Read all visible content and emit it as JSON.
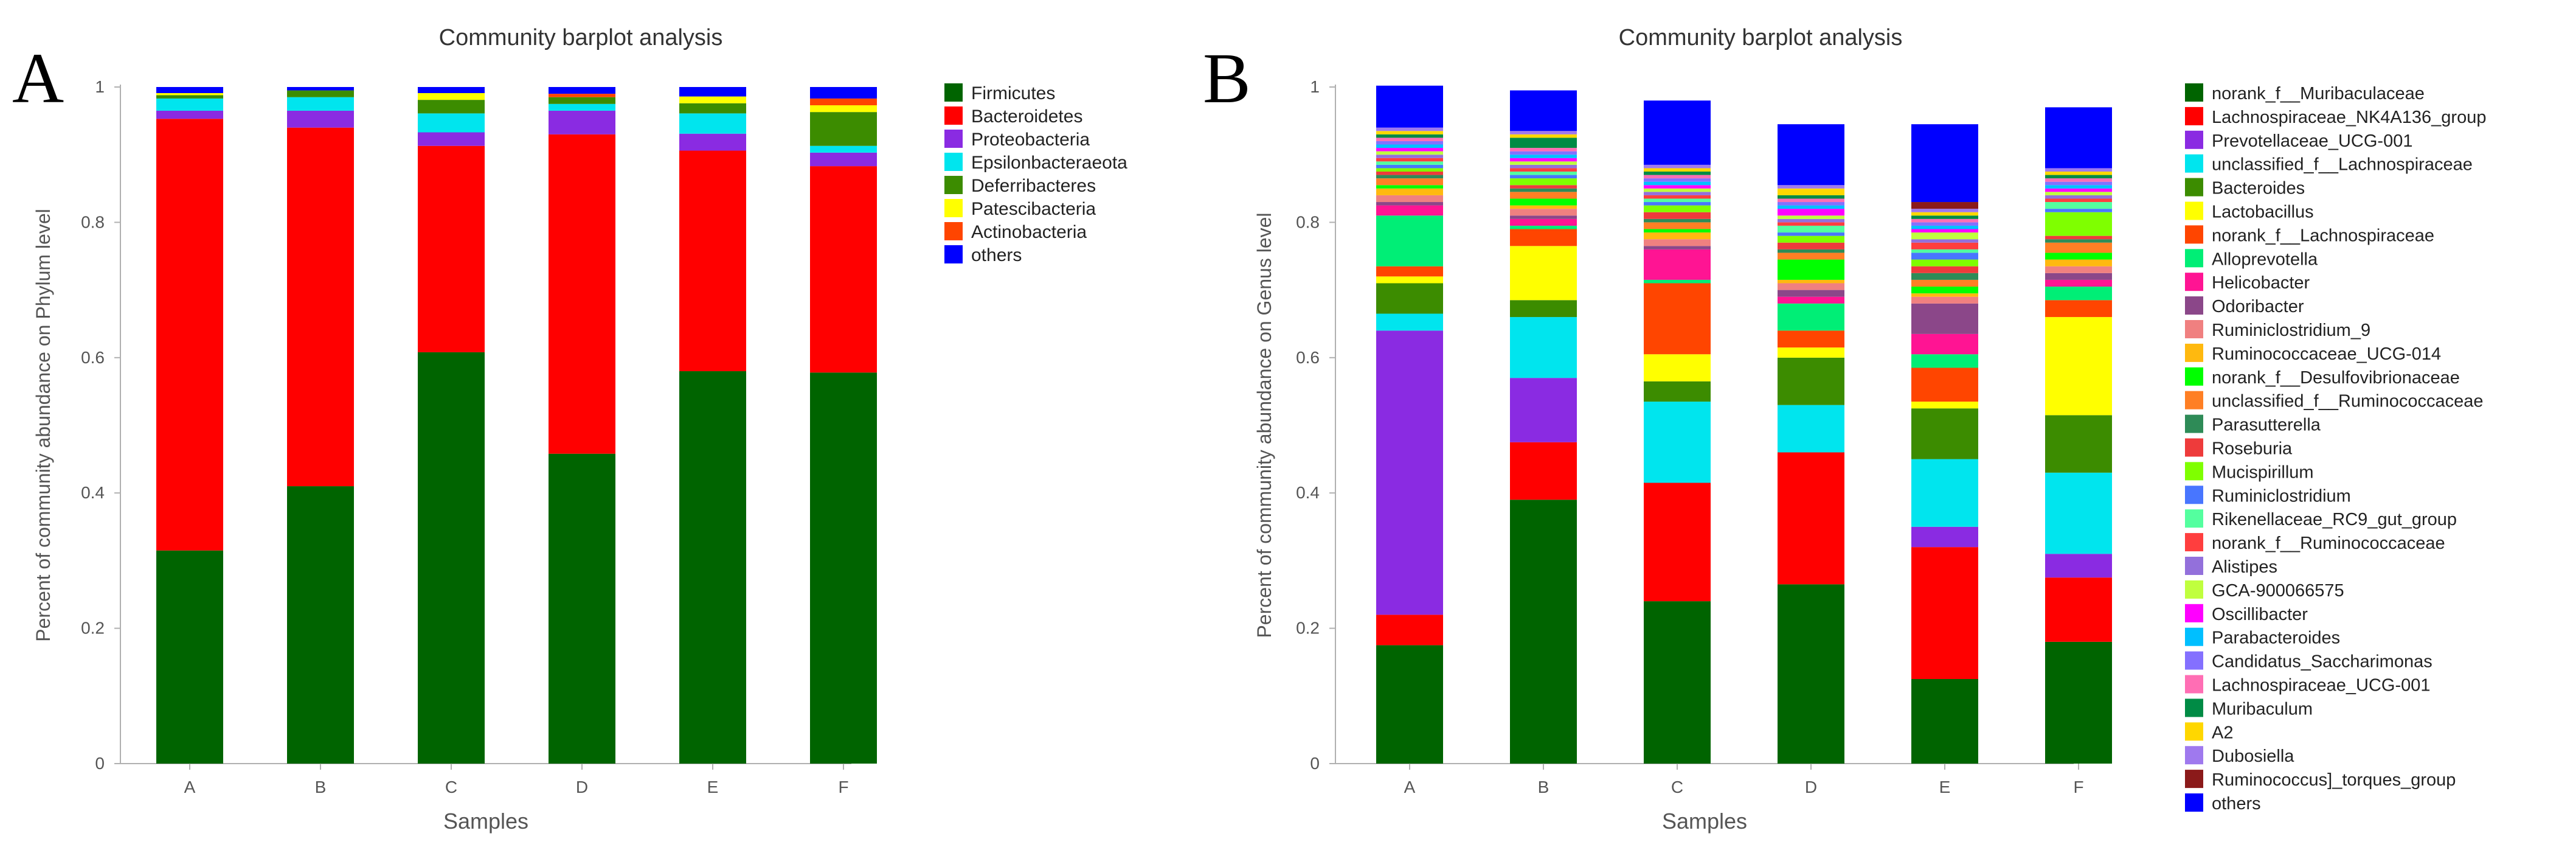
{
  "panels": [
    {
      "letter": "A"
    },
    {
      "letter": "B"
    }
  ],
  "chart_data": [
    {
      "type": "bar",
      "stacked": true,
      "title": "Community barplot analysis",
      "xlabel": "Samples",
      "ylabel": "Percent of community abundance on Phylum level",
      "ylim": [
        0,
        1
      ],
      "yticks": [
        "0",
        "0.2",
        "0.4",
        "0.6",
        "0.8",
        "1"
      ],
      "categories": [
        "A",
        "B",
        "C",
        "D",
        "E",
        "F"
      ],
      "legend_position": "right",
      "series": [
        {
          "name": "Firmicutes",
          "color": "#006400",
          "values": [
            0.315,
            0.41,
            0.608,
            0.458,
            0.58,
            0.578
          ]
        },
        {
          "name": "Bacteroidetes",
          "color": "#ff0000",
          "values": [
            0.638,
            0.53,
            0.305,
            0.472,
            0.326,
            0.305
          ]
        },
        {
          "name": "Proteobacteria",
          "color": "#8a2be2",
          "values": [
            0.012,
            0.025,
            0.02,
            0.035,
            0.025,
            0.02
          ]
        },
        {
          "name": "Epsilonbacteraeota",
          "color": "#00e5ee",
          "values": [
            0.018,
            0.02,
            0.028,
            0.01,
            0.03,
            0.01
          ]
        },
        {
          "name": "Deferribacteres",
          "color": "#3c8c00",
          "values": [
            0.005,
            0.01,
            0.02,
            0.01,
            0.015,
            0.05
          ]
        },
        {
          "name": "Patescibacteria",
          "color": "#ffff00",
          "values": [
            0.003,
            0.0,
            0.01,
            0.0,
            0.01,
            0.01
          ]
        },
        {
          "name": "Actinobacteria",
          "color": "#ff4500",
          "values": [
            0.0,
            0.0,
            0.0,
            0.005,
            0.0,
            0.01
          ]
        },
        {
          "name": "others",
          "color": "#0000ff",
          "values": [
            0.009,
            0.005,
            0.009,
            0.01,
            0.014,
            0.017
          ]
        }
      ]
    },
    {
      "type": "bar",
      "stacked": true,
      "title": "Community barplot analysis",
      "xlabel": "Samples",
      "ylabel": "Percent of community abundance on Genus level",
      "ylim": [
        0,
        1
      ],
      "yticks": [
        "0",
        "0.2",
        "0.4",
        "0.6",
        "0.8",
        "1"
      ],
      "categories": [
        "A",
        "B",
        "C",
        "D",
        "E",
        "F"
      ],
      "legend_position": "right",
      "series": [
        {
          "name": "norank_f__Muribaculaceae",
          "color": "#006400",
          "values": [
            0.175,
            0.39,
            0.24,
            0.265,
            0.125,
            0.18
          ]
        },
        {
          "name": "Lachnospiraceae_NK4A136_group",
          "color": "#ff0000",
          "values": [
            0.045,
            0.085,
            0.175,
            0.195,
            0.195,
            0.095
          ]
        },
        {
          "name": "Prevotellaceae_UCG-001",
          "color": "#8a2be2",
          "values": [
            0.42,
            0.095,
            0.0,
            0.0,
            0.03,
            0.035
          ]
        },
        {
          "name": "unclassified_f__Lachnospiraceae",
          "color": "#00e5ee",
          "values": [
            0.025,
            0.09,
            0.12,
            0.07,
            0.1,
            0.12
          ]
        },
        {
          "name": "Bacteroides",
          "color": "#3c8c00",
          "values": [
            0.045,
            0.025,
            0.03,
            0.07,
            0.075,
            0.085
          ]
        },
        {
          "name": "Lactobacillus",
          "color": "#ffff00",
          "values": [
            0.01,
            0.08,
            0.04,
            0.015,
            0.01,
            0.145
          ]
        },
        {
          "name": "norank_f__Lachnospiraceae",
          "color": "#ff4500",
          "values": [
            0.015,
            0.025,
            0.105,
            0.025,
            0.05,
            0.025
          ]
        },
        {
          "name": "Alloprevotella",
          "color": "#00ee76",
          "values": [
            0.075,
            0.005,
            0.005,
            0.04,
            0.02,
            0.02
          ]
        },
        {
          "name": "Helicobacter",
          "color": "#ff1493",
          "values": [
            0.015,
            0.01,
            0.045,
            0.01,
            0.03,
            0.01
          ]
        },
        {
          "name": "Odoribacter",
          "color": "#8b4789",
          "values": [
            0.005,
            0.005,
            0.005,
            0.01,
            0.045,
            0.01
          ]
        },
        {
          "name": "Ruminiclostridium_9",
          "color": "#f08080",
          "values": [
            0.01,
            0.01,
            0.01,
            0.01,
            0.01,
            0.01
          ]
        },
        {
          "name": "Ruminococcaceae_UCG-014",
          "color": "#ffb90f",
          "values": [
            0.01,
            0.005,
            0.01,
            0.005,
            0.005,
            0.01
          ]
        },
        {
          "name": "norank_f__Desulfovibrionaceae",
          "color": "#00ff00",
          "values": [
            0.005,
            0.01,
            0.005,
            0.03,
            0.01,
            0.01
          ]
        },
        {
          "name": "unclassified_f__Ruminococcaceae",
          "color": "#ff7f24",
          "values": [
            0.01,
            0.01,
            0.01,
            0.01,
            0.01,
            0.015
          ]
        },
        {
          "name": "Parasutterella",
          "color": "#2e8b57",
          "values": [
            0.005,
            0.005,
            0.005,
            0.005,
            0.01,
            0.005
          ]
        },
        {
          "name": "Roseburia",
          "color": "#ee3b3b",
          "values": [
            0.005,
            0.005,
            0.01,
            0.01,
            0.01,
            0.005
          ]
        },
        {
          "name": "Mucispirillum",
          "color": "#7fff00",
          "values": [
            0.005,
            0.01,
            0.01,
            0.01,
            0.01,
            0.035
          ]
        },
        {
          "name": "Ruminiclostridium",
          "color": "#4876ff",
          "values": [
            0.005,
            0.005,
            0.005,
            0.005,
            0.01,
            0.005
          ]
        },
        {
          "name": "Rikenellaceae_RC9_gut_group",
          "color": "#54ff9f",
          "values": [
            0.005,
            0.005,
            0.005,
            0.01,
            0.005,
            0.01
          ]
        },
        {
          "name": "norank_f__Ruminococcaceae",
          "color": "#ff3e3e",
          "values": [
            0.005,
            0.005,
            0.005,
            0.005,
            0.01,
            0.005
          ]
        },
        {
          "name": "Alistipes",
          "color": "#9370db",
          "values": [
            0.005,
            0.005,
            0.005,
            0.005,
            0.005,
            0.005
          ]
        },
        {
          "name": "GCA-900066575",
          "color": "#c0ff3e",
          "values": [
            0.005,
            0.005,
            0.005,
            0.005,
            0.01,
            0.005
          ]
        },
        {
          "name": "Oscillibacter",
          "color": "#ff00ff",
          "values": [
            0.005,
            0.005,
            0.005,
            0.01,
            0.005,
            0.005
          ]
        },
        {
          "name": "Parabacteroides",
          "color": "#00bfff",
          "values": [
            0.005,
            0.005,
            0.005,
            0.005,
            0.005,
            0.005
          ]
        },
        {
          "name": "Candidatus_Saccharimonas",
          "color": "#8470ff",
          "values": [
            0.005,
            0.005,
            0.005,
            0.005,
            0.005,
            0.005
          ]
        },
        {
          "name": "Lachnospiraceae_UCG-001",
          "color": "#ff6eb4",
          "values": [
            0.005,
            0.005,
            0.005,
            0.005,
            0.005,
            0.005
          ]
        },
        {
          "name": "Muribaculum",
          "color": "#008b45",
          "values": [
            0.005,
            0.015,
            0.005,
            0.005,
            0.005,
            0.005
          ]
        },
        {
          "name": "A2",
          "color": "#ffd700",
          "values": [
            0.005,
            0.005,
            0.005,
            0.01,
            0.005,
            0.005
          ]
        },
        {
          "name": "Dubosiella",
          "color": "#9f79ee",
          "values": [
            0.005,
            0.005,
            0.005,
            0.005,
            0.005,
            0.005
          ]
        },
        {
          "name": "Ruminococcus]_torques_group",
          "color": "#8b1a1a",
          "values": [
            0.0,
            0.0,
            0.0,
            0.0,
            0.01,
            0.0
          ]
        },
        {
          "name": "others",
          "color": "#0000ff",
          "values": [
            0.062,
            0.06,
            0.095,
            0.09,
            0.115,
            0.09
          ]
        }
      ]
    }
  ]
}
